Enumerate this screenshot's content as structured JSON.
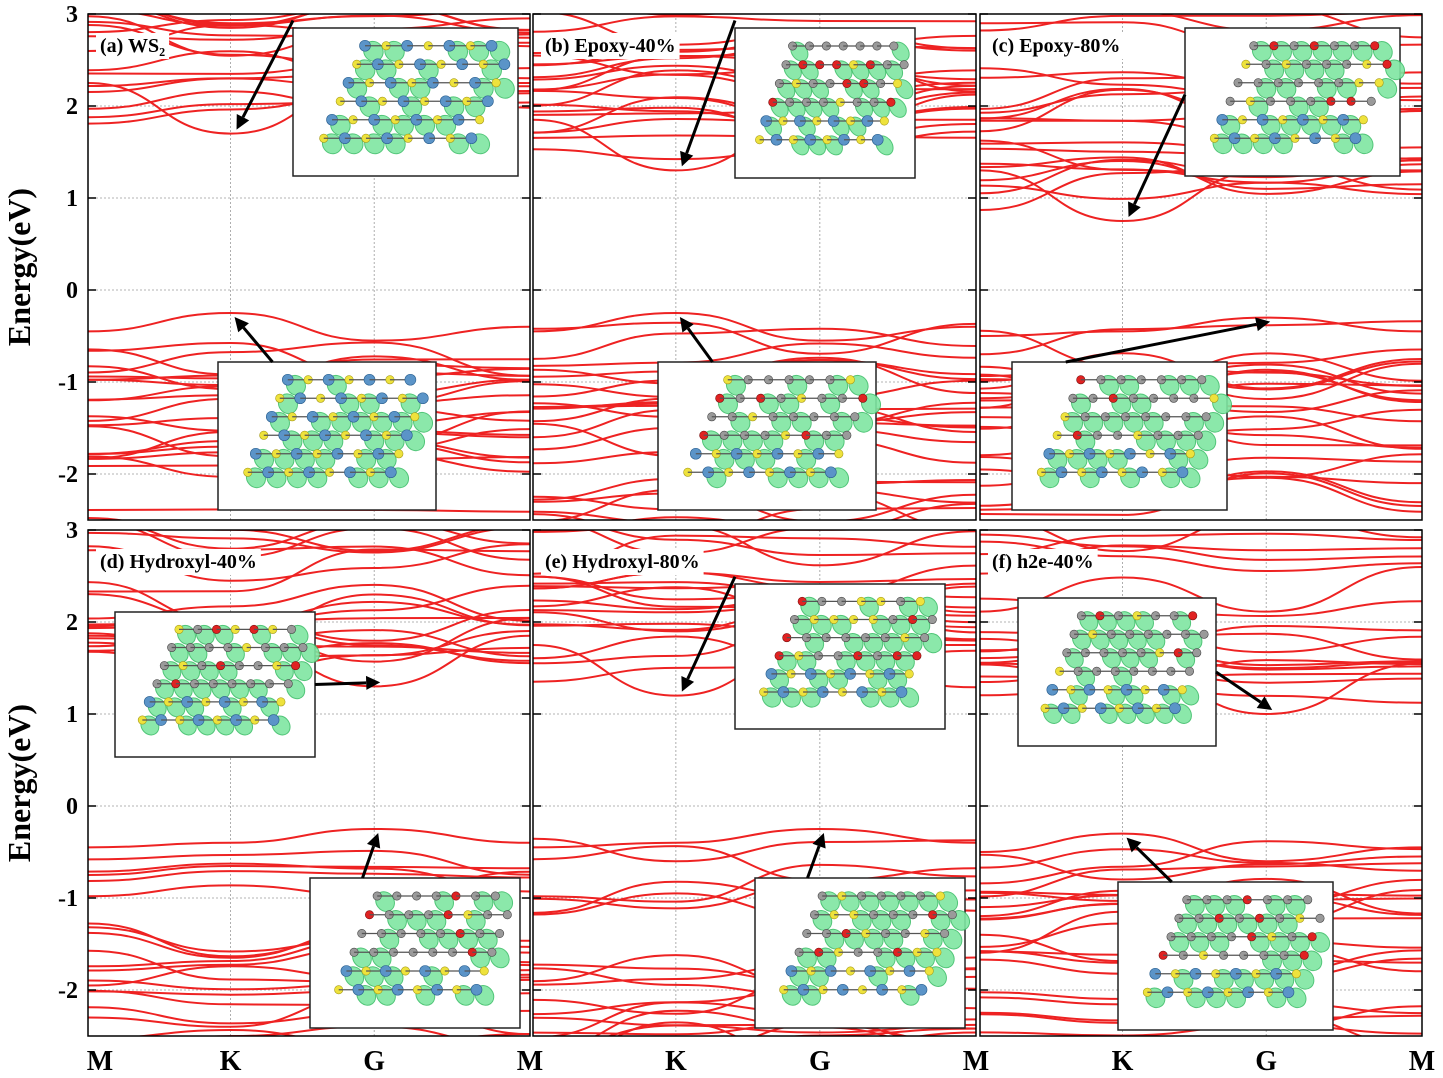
{
  "chart_data": [
    {
      "id": "a",
      "label": "(a) WS₂",
      "type": "line",
      "ylabel": "Energy(eV)",
      "ylim": [
        -2.5,
        3
      ],
      "yticks": [
        "3",
        "2",
        "1",
        "0",
        "-1",
        "-2"
      ],
      "x_high_symmetry": [
        "M",
        "K",
        "G",
        "M"
      ],
      "cbm": {
        "k": "K",
        "energy": 1.7
      },
      "vbm": {
        "k": "K",
        "energy": -0.25
      },
      "inset_structure": "monolayer"
    },
    {
      "id": "b",
      "label": "(b) Epoxy-40%",
      "type": "line",
      "ylim": [
        -2.5,
        3
      ],
      "x_high_symmetry": [
        "M",
        "K",
        "G",
        "M"
      ],
      "cbm": {
        "k": "K",
        "energy": 1.3
      },
      "vbm": {
        "k": "K",
        "energy": -0.25
      },
      "inset_structure": "heterostructure"
    },
    {
      "id": "c",
      "label": "(c) Epoxy-80%",
      "type": "line",
      "ylim": [
        -2.5,
        3
      ],
      "x_high_symmetry": [
        "M",
        "K",
        "G",
        "M"
      ],
      "cbm": {
        "k": "K",
        "energy": 0.75
      },
      "vbm": {
        "k": "G",
        "energy": -0.3
      },
      "inset_structure": "heterostructure"
    },
    {
      "id": "d",
      "label": "(d) Hydroxyl-40%",
      "type": "line",
      "ylabel": "Energy(eV)",
      "ylim": [
        -2.5,
        3
      ],
      "yticks": [
        "3",
        "2",
        "1",
        "0",
        "-1",
        "-2"
      ],
      "x_high_symmetry": [
        "M",
        "K",
        "G",
        "M"
      ],
      "cbm": {
        "k": "G",
        "energy": 1.3
      },
      "vbm": {
        "k": "G",
        "energy": -0.25
      },
      "inset_structure": "heterostructure"
    },
    {
      "id": "e",
      "label": "(e) Hydroxyl-80%",
      "type": "line",
      "ylim": [
        -2.5,
        3
      ],
      "x_high_symmetry": [
        "M",
        "K",
        "G",
        "M"
      ],
      "cbm": {
        "k": "K",
        "energy": 1.2
      },
      "vbm": {
        "k": "G",
        "energy": -0.25
      },
      "inset_structure": "heterostructure"
    },
    {
      "id": "f",
      "label": "(f) h2e-40%",
      "type": "line",
      "ylim": [
        -2.5,
        3
      ],
      "x_high_symmetry": [
        "M",
        "K",
        "G",
        "M"
      ],
      "cbm": {
        "k": "G",
        "energy": 1.0
      },
      "vbm": {
        "k": "K",
        "energy": -0.3
      },
      "inset_structure": "heterostructure"
    }
  ],
  "colors": {
    "band": "#ee2222",
    "orbital": "#7fe6a1",
    "W": "#5b94c8",
    "S": "#eee23c",
    "C": "#9a9a9a",
    "O": "#e02222"
  }
}
